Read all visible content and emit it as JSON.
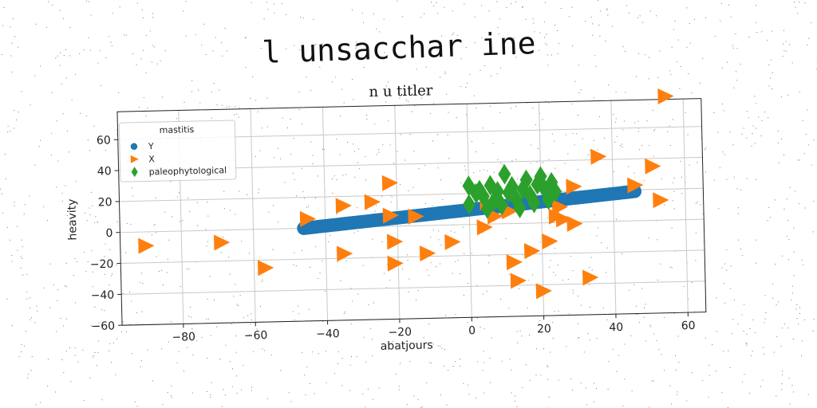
{
  "suptitle": "l unsacchar ine",
  "chart_data": {
    "type": "scatter",
    "title": "n u titler",
    "xlabel": "abatjours",
    "ylabel": "heavity",
    "xlim": [
      -97,
      65
    ],
    "ylim": [
      -60,
      78
    ],
    "xticks": [
      -80,
      -60,
      -40,
      -20,
      0,
      20,
      40,
      60
    ],
    "yticks": [
      -60,
      -40,
      -20,
      0,
      20,
      40,
      60
    ],
    "grid": true,
    "legend": {
      "title": "mastitis",
      "placement": "top-left"
    },
    "series": [
      {
        "name": "Y",
        "marker": "circle",
        "color": "#1f77b4",
        "line": {
          "x_from": -46,
          "x_to": 46,
          "y_from": 0,
          "y_to": 19
        }
      },
      {
        "name": "X",
        "marker": "triangle-right",
        "color": "#ff7f0e",
        "points": [
          [
            -90,
            -9
          ],
          [
            -69,
            -8
          ],
          [
            -57,
            -25
          ],
          [
            -45,
            6
          ],
          [
            -35,
            14
          ],
          [
            -35,
            -17
          ],
          [
            -27,
            16
          ],
          [
            -22,
            28
          ],
          [
            -22,
            7
          ],
          [
            -21,
            -10
          ],
          [
            -21,
            -24
          ],
          [
            -15,
            6
          ],
          [
            -12,
            -18
          ],
          [
            -5,
            -11
          ],
          [
            4,
            -2
          ],
          [
            5,
            14
          ],
          [
            7,
            5
          ],
          [
            11,
            8
          ],
          [
            12,
            -25
          ],
          [
            13,
            -37
          ],
          [
            17,
            -18
          ],
          [
            20,
            -44
          ],
          [
            22,
            -12
          ],
          [
            24,
            4
          ],
          [
            25,
            10
          ],
          [
            26,
            2
          ],
          [
            29,
            -1
          ],
          [
            29,
            23
          ],
          [
            33,
            -36
          ],
          [
            36,
            42
          ],
          [
            46,
            23
          ],
          [
            51,
            35
          ],
          [
            53,
            13
          ],
          [
            55,
            80
          ]
        ]
      },
      {
        "name": "paleophytological",
        "marker": "diamond",
        "color": "#2ca02c",
        "points": [
          [
            0,
            25
          ],
          [
            0,
            13
          ],
          [
            2,
            20
          ],
          [
            3,
            22
          ],
          [
            4,
            18
          ],
          [
            5,
            10
          ],
          [
            6,
            25
          ],
          [
            7,
            15
          ],
          [
            8,
            21
          ],
          [
            9,
            12
          ],
          [
            10,
            32
          ],
          [
            11,
            20
          ],
          [
            12,
            24
          ],
          [
            13,
            16
          ],
          [
            14,
            10
          ],
          [
            15,
            22
          ],
          [
            16,
            28
          ],
          [
            17,
            18
          ],
          [
            18,
            13
          ],
          [
            19,
            25
          ],
          [
            20,
            30
          ],
          [
            21,
            22
          ],
          [
            22,
            15
          ],
          [
            23,
            26
          ],
          [
            24,
            20
          ]
        ]
      }
    ]
  }
}
